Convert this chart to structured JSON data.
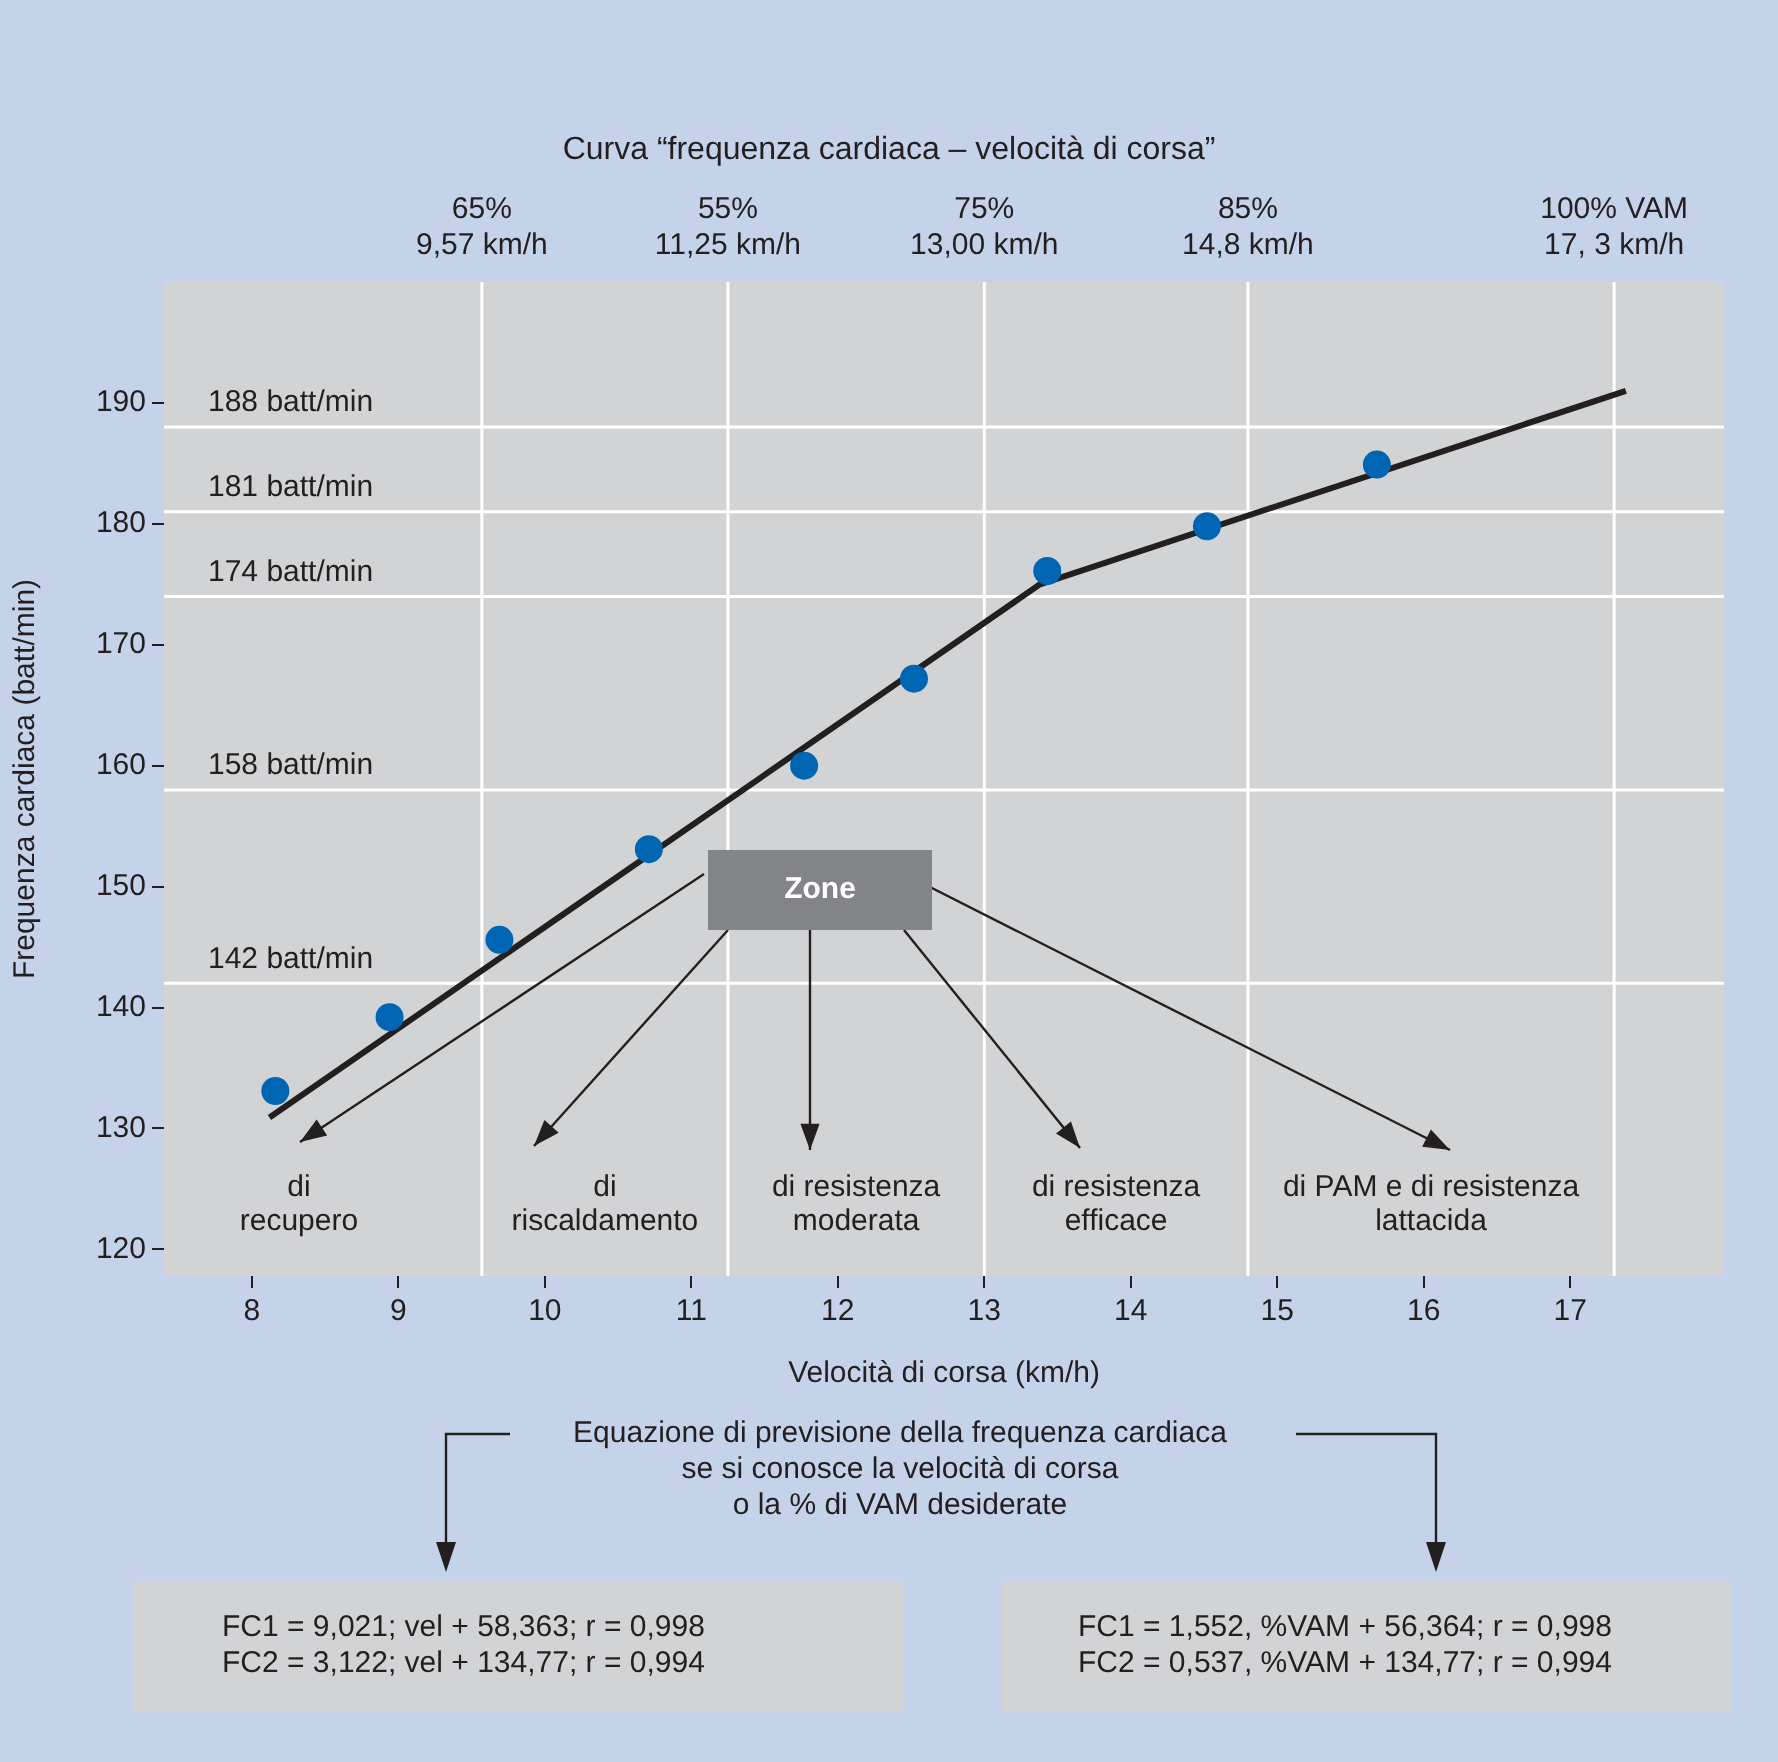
{
  "chart_data": {
    "type": "scatter",
    "title": "Curva “frequenza cardiaca – velocità di corsa”",
    "xlabel": "Velocità di corsa (km/h)",
    "ylabel": "Frequenza cardiaca (batt/min)",
    "xlim": [
      7.4,
      18.05
    ],
    "xticks": [
      8,
      9,
      10,
      11,
      12,
      13,
      14,
      15,
      16,
      17
    ],
    "ylim": [
      117.8,
      200
    ],
    "yticks": [
      120,
      130,
      140,
      150,
      160,
      170,
      180,
      190
    ],
    "series": [
      {
        "color": "#0066b3",
        "marker": "circle",
        "x": [
          8.16,
          8.94,
          9.69,
          10.71,
          11.77,
          12.52,
          13.43,
          14.52,
          15.68
        ],
        "values": [
          133.1,
          139.2,
          145.6,
          153.1,
          160.0,
          167.2,
          176.1,
          179.8,
          184.9
        ]
      },
      {
        "type": "line",
        "color": "#231f20",
        "marker": "none",
        "x": [
          8.12,
          13.38,
          17.38
        ],
        "values": [
          130.9,
          175.0,
          191.0
        ]
      }
    ],
    "ref_lines": [
      {
        "axis": "x",
        "value": 9.57,
        "label": "65%\n9,57 km/h",
        "color": "#ffffff"
      },
      {
        "axis": "x",
        "value": 11.25,
        "label": "55%\n11,25 km/h",
        "color": "#ffffff"
      },
      {
        "axis": "x",
        "value": 13.0,
        "label": "75%\n13,00 km/h",
        "color": "#ffffff"
      },
      {
        "axis": "x",
        "value": 14.8,
        "label": "85%\n14,8 km/h",
        "color": "#ffffff"
      },
      {
        "axis": "x",
        "value": 17.3,
        "label": "100% VAM\n17, 3 km/h",
        "color": "#ffffff"
      },
      {
        "axis": "y",
        "value": 188,
        "label": "188 batt/min",
        "color": "#ffffff"
      },
      {
        "axis": "y",
        "value": 181,
        "label": "181 batt/min",
        "color": "#ffffff"
      },
      {
        "axis": "y",
        "value": 174,
        "label": "174 batt/min",
        "color": "#ffffff"
      },
      {
        "axis": "y",
        "value": 158,
        "label": "158 batt/min",
        "color": "#ffffff"
      },
      {
        "axis": "y",
        "value": 142,
        "label": "142 batt/min",
        "color": "#ffffff"
      }
    ],
    "annotations": [
      "di\nrecupero",
      "di\nriscaldamento",
      "di resistenza\nmoderata",
      "di resistenza\nefficace",
      "di PAM e di resistenza\nlattacida",
      "Zone",
      "Equazione di previsione della frequenza cardiaca\nse si conosce la velocità di corsa\no la % di VAM desiderate",
      "FC1 = 9,021; vel + 58,363; r = 0,998\nFC2 = 3,122; vel + 134,77; r = 0,994",
      "FC1 = 1,552, %VAM + 56,364; r = 0,998\nFC2 = 0,537, %VAM + 134,77; r = 0,994"
    ]
  }
}
